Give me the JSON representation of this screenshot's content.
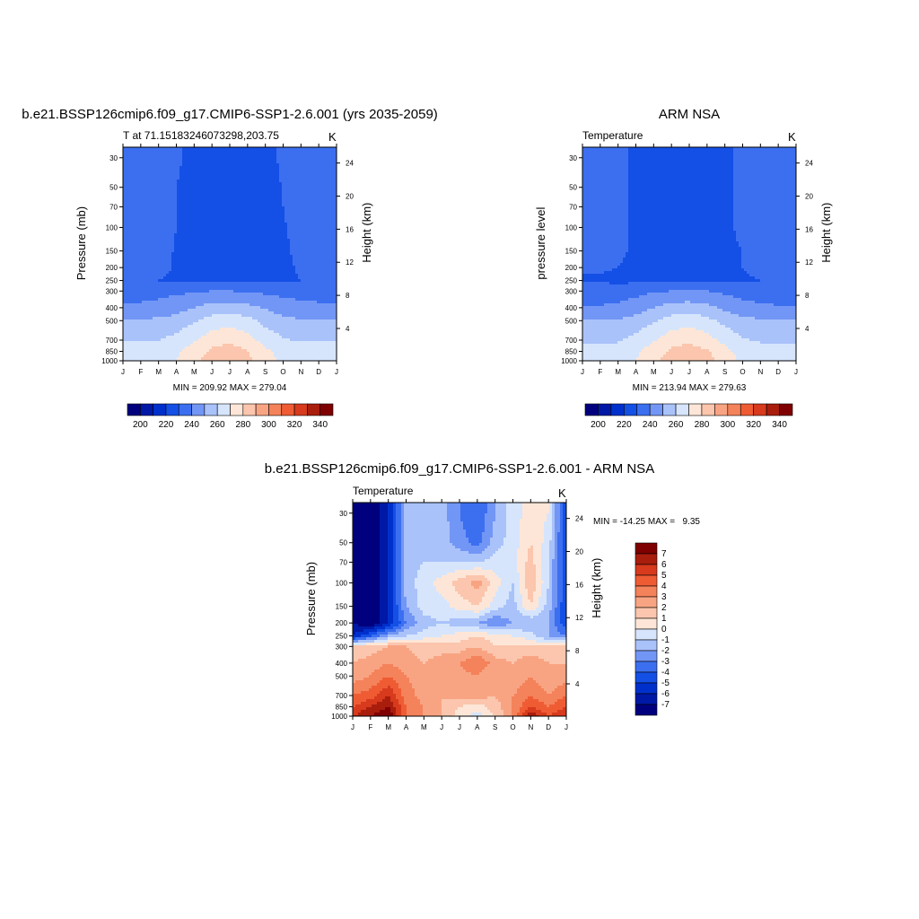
{
  "panels": [
    {
      "id": "model",
      "title": "b.e21.BSSP126cmip6.f09_g17.CMIP6-SSP1-2.6.001 (yrs 2035-2059)",
      "left_label": "T at 71.15183246073298,203.75",
      "right_label": "K",
      "ylabel": "Pressure (mb)",
      "ylabel2": "Height (km)",
      "minmax": "MIN = 209.92 MAX = 279.04"
    },
    {
      "id": "obs",
      "title": "ARM NSA",
      "left_label": "Temperature",
      "right_label": "K",
      "ylabel": "pressure level",
      "ylabel2": "Height (km)",
      "minmax": "MIN = 213.94 MAX = 279.63"
    },
    {
      "id": "diff",
      "title": "b.e21.BSSP126cmip6.f09_g17.CMIP6-SSP1-2.6.001 - ARM NSA",
      "left_label": "Temperature",
      "right_label": "K",
      "ylabel": "Pressure (mb)",
      "ylabel2": "Height (km)",
      "minmax": "MIN = -14.25 MAX =   9.35"
    }
  ],
  "colors": {
    "abs_palette": [
      "#00007f",
      "#0018a6",
      "#0030cc",
      "#1450e6",
      "#3c6ff0",
      "#7296f5",
      "#a9c2fa",
      "#d6e5fc",
      "#fde6d7",
      "#fbc6ad",
      "#f8a483",
      "#f4825a",
      "#ef5c34",
      "#d73a1c",
      "#a91d0d",
      "#7f0000"
    ],
    "diff_palette": [
      "#00007f",
      "#0018a6",
      "#0030cc",
      "#1450e6",
      "#3c6ff0",
      "#7296f5",
      "#a9c2fa",
      "#d6e5fc",
      "#fde6d7",
      "#fbc6ad",
      "#f8a483",
      "#f4825a",
      "#ef5c34",
      "#d73a1c",
      "#a91d0d",
      "#7f0000"
    ]
  },
  "chart_data": [
    {
      "type": "heatmap",
      "panel": "model",
      "title": "b.e21.BSSP126cmip6.f09_g17.CMIP6-SSP1-2.6.001 (yrs 2035-2059)",
      "ylabel": "Pressure (mb)",
      "ylabel2": "Height (km)",
      "units": "K",
      "x_ticks": [
        "J",
        "F",
        "M",
        "A",
        "M",
        "J",
        "J",
        "A",
        "S",
        "O",
        "N",
        "D",
        "J"
      ],
      "y_ticks": [
        30,
        50,
        70,
        100,
        150,
        200,
        250,
        300,
        400,
        500,
        700,
        850,
        1000
      ],
      "y2_ticks": [
        4,
        8,
        12,
        16,
        20,
        24
      ],
      "y_scale": "log",
      "ylim": [
        1000,
        25
      ],
      "colorbar_levels": [
        195,
        200,
        210,
        220,
        230,
        240,
        250,
        260,
        270,
        280,
        290,
        300,
        310,
        320,
        330,
        340
      ],
      "colorbar_labels": [
        200,
        220,
        240,
        260,
        280,
        300,
        320,
        340
      ],
      "grid": [
        [
          224,
          226,
          225,
          221,
          218,
          218,
          217,
          217,
          218,
          221,
          225,
          226,
          224
        ],
        [
          224,
          226,
          225,
          220,
          217,
          217,
          217,
          218,
          219,
          220,
          225,
          226,
          224
        ],
        [
          224,
          226,
          225,
          220,
          217,
          217,
          217,
          218,
          219,
          220,
          224,
          226,
          224
        ],
        [
          224,
          226,
          224,
          220,
          217,
          217,
          217,
          218,
          219,
          219,
          224,
          226,
          224
        ],
        [
          224,
          226,
          224,
          219,
          217,
          217,
          217,
          218,
          219,
          218,
          223,
          226,
          224
        ],
        [
          224,
          225,
          223,
          219,
          217,
          217,
          217,
          218,
          219,
          218,
          221,
          225,
          224
        ],
        [
          224,
          223,
          220,
          218,
          217,
          218,
          219,
          220,
          219,
          219,
          220,
          223,
          224
        ],
        [
          226,
          226,
          227,
          228,
          229,
          230,
          230,
          229,
          228,
          227,
          226,
          226,
          226
        ],
        [
          232,
          232,
          233,
          236,
          240,
          244,
          245,
          243,
          239,
          235,
          233,
          232,
          232
        ],
        [
          241,
          241,
          242,
          244,
          249,
          254,
          256,
          253,
          247,
          243,
          241,
          241,
          241
        ],
        [
          249,
          249,
          250,
          253,
          259,
          266,
          268,
          264,
          256,
          251,
          249,
          249,
          249
        ],
        [
          254,
          254,
          255,
          258,
          265,
          272,
          275,
          270,
          262,
          256,
          254,
          254,
          254
        ],
        [
          256,
          256,
          257,
          260,
          267,
          276,
          279,
          273,
          264,
          258,
          256,
          256,
          256
        ]
      ],
      "min": 209.92,
      "max": 279.04
    },
    {
      "type": "heatmap",
      "panel": "obs",
      "title": "ARM NSA",
      "ylabel": "pressure level",
      "ylabel2": "Height (km)",
      "units": "K",
      "x_ticks": [
        "J",
        "F",
        "M",
        "A",
        "M",
        "J",
        "J",
        "A",
        "S",
        "O",
        "N",
        "D",
        "J"
      ],
      "y_ticks": [
        30,
        50,
        70,
        100,
        150,
        200,
        250,
        300,
        400,
        500,
        700,
        850,
        1000
      ],
      "y2_ticks": [
        4,
        8,
        12,
        16,
        20,
        24
      ],
      "y_scale": "log",
      "ylim": [
        1000,
        25
      ],
      "colorbar_levels": [
        195,
        200,
        210,
        220,
        230,
        240,
        250,
        260,
        270,
        280,
        290,
        300,
        310,
        320,
        330,
        340
      ],
      "colorbar_labels": [
        200,
        220,
        240,
        260,
        280,
        300,
        320,
        340
      ],
      "grid": [
        [
          222,
          222,
          221,
          219,
          218,
          218,
          219,
          218,
          219,
          221,
          224,
          225,
          223
        ],
        [
          222,
          222,
          221,
          219,
          218,
          218,
          218,
          218,
          219,
          221,
          224,
          225,
          223
        ],
        [
          222,
          222,
          221,
          219,
          218,
          218,
          218,
          218,
          219,
          221,
          224,
          225,
          223
        ],
        [
          222,
          222,
          221,
          219,
          218,
          218,
          218,
          218,
          219,
          221,
          224,
          225,
          223
        ],
        [
          222,
          222,
          221,
          219,
          218,
          218,
          218,
          218,
          219,
          220,
          223,
          224,
          223
        ],
        [
          221,
          221,
          220,
          219,
          218,
          218,
          218,
          218,
          219,
          220,
          222,
          223,
          222
        ],
        [
          219,
          219,
          218,
          218,
          218,
          219,
          220,
          220,
          219,
          219,
          220,
          221,
          220
        ],
        [
          224,
          224,
          225,
          227,
          229,
          230,
          231,
          230,
          228,
          226,
          225,
          224,
          224
        ],
        [
          231,
          231,
          232,
          235,
          240,
          244,
          245,
          243,
          238,
          234,
          232,
          231,
          231
        ],
        [
          240,
          240,
          241,
          244,
          249,
          254,
          256,
          253,
          247,
          243,
          241,
          240,
          240
        ],
        [
          248,
          248,
          249,
          253,
          259,
          266,
          268,
          264,
          257,
          251,
          249,
          248,
          248
        ],
        [
          253,
          253,
          254,
          258,
          265,
          272,
          275,
          271,
          263,
          256,
          254,
          253,
          253
        ],
        [
          255,
          255,
          256,
          260,
          267,
          276,
          280,
          274,
          265,
          258,
          256,
          255,
          255
        ]
      ],
      "min": 213.94,
      "max": 279.63
    },
    {
      "type": "heatmap",
      "panel": "diff",
      "title": "b.e21.BSSP126cmip6.f09_g17.CMIP6-SSP1-2.6.001 - ARM NSA",
      "ylabel": "Pressure (mb)",
      "ylabel2": "Height (km)",
      "units": "K",
      "x_ticks": [
        "J",
        "F",
        "M",
        "A",
        "M",
        "J",
        "J",
        "A",
        "S",
        "O",
        "N",
        "D",
        "J"
      ],
      "y_ticks": [
        30,
        50,
        70,
        100,
        150,
        200,
        250,
        300,
        400,
        500,
        700,
        850,
        1000
      ],
      "y2_ticks": [
        4,
        8,
        12,
        16,
        20,
        24
      ],
      "y_scale": "log",
      "ylim": [
        1000,
        25
      ],
      "colorbar_levels": [
        -7,
        -6,
        -5,
        -4,
        -3,
        -2,
        -1,
        0,
        1,
        2,
        3,
        4,
        5,
        6,
        7
      ],
      "colorbar_labels": [
        7,
        6,
        5,
        4,
        3,
        2,
        1,
        0,
        -1,
        -2,
        -3,
        -4,
        -5,
        -6,
        -7
      ],
      "grid": [
        [
          -8,
          -8,
          -6,
          -1.5,
          -1,
          -1.5,
          -3,
          -4,
          -2,
          -0.5,
          0.5,
          0,
          -5
        ],
        [
          -8,
          -8,
          -6,
          -1.5,
          -1.5,
          -1.5,
          -2.5,
          -3.5,
          -1.5,
          -0.5,
          1,
          -0.5,
          -5
        ],
        [
          -8,
          -8,
          -6,
          -1.5,
          -1,
          -1,
          -1,
          -1,
          -0.5,
          -0.5,
          1.5,
          -1,
          -5
        ],
        [
          -8,
          -8,
          -6,
          -1.5,
          -0.5,
          0.5,
          1.5,
          2.5,
          0.5,
          -1,
          2,
          -1,
          -5
        ],
        [
          -8,
          -8,
          -6,
          -2,
          -0.5,
          -0.5,
          0.5,
          1,
          -0.5,
          -1.5,
          1,
          -1.5,
          -5
        ],
        [
          -7,
          -8,
          -6,
          -3,
          -1.5,
          -1,
          -1.5,
          -2,
          -3,
          -2,
          -2,
          -2,
          -5
        ],
        [
          -6,
          -4,
          -2,
          -1,
          -0.5,
          0,
          0.5,
          1,
          0.5,
          0,
          -0.5,
          -2,
          -3
        ],
        [
          1,
          1.5,
          2,
          2,
          1.5,
          1.5,
          1.5,
          2,
          1,
          1,
          1,
          1,
          1
        ],
        [
          2,
          2.5,
          3,
          2.5,
          2,
          2.5,
          3,
          4,
          2.5,
          2,
          3,
          2,
          2
        ],
        [
          2.5,
          3,
          4,
          3,
          2.5,
          2,
          2.5,
          3,
          2,
          2,
          3,
          2,
          2.5
        ],
        [
          4,
          4.5,
          6,
          3.5,
          2.5,
          2,
          2.5,
          2.5,
          2,
          3,
          4,
          3,
          4
        ],
        [
          5,
          6,
          7,
          4,
          3,
          2,
          1,
          0.5,
          1.5,
          3,
          5,
          4,
          5
        ],
        [
          6,
          7,
          8,
          4,
          3,
          2,
          0.5,
          -0.5,
          1,
          3,
          7,
          5,
          6
        ]
      ],
      "min": -14.25,
      "max": 9.35
    }
  ]
}
